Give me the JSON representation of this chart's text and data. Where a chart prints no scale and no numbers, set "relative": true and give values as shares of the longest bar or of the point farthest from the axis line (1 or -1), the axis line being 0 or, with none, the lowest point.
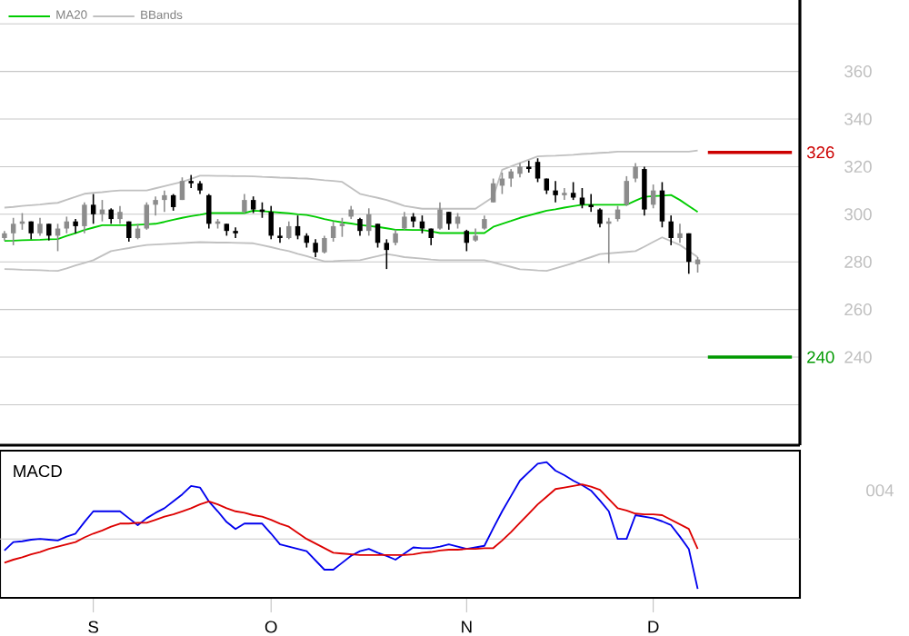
{
  "chart_data": [
    {
      "type": "candlestick",
      "colors": [
        "#8c8c8c",
        "#8c8c8c",
        "#8c8c8c",
        "#000000",
        "#8c8c8c",
        "#000000",
        "#8c8c8c",
        "#8c8c8c",
        "#000000",
        "#8c8c8c",
        "#000000",
        "#8c8c8c",
        "#000000",
        "#8c8c8c",
        "#000000",
        "#8c8c8c",
        "#8c8c8c",
        "#8c8c8c",
        "#8c8c8c",
        "#000000",
        "#8c8c8c",
        "#000000",
        "#000000",
        "#000000",
        "#8c8c8c",
        "#000000",
        "#000000",
        "#8c8c8c",
        "#000000",
        "#000000",
        "#000000",
        "#000000",
        "#8c8c8c",
        "#000000",
        "#000000",
        "#000000",
        "#8c8c8c",
        "#8c8c8c",
        "#8c8c8c",
        "#8c8c8c",
        "#000000",
        "#8c8c8c",
        "#000000",
        "#000000",
        "#8c8c8c",
        "#8c8c8c",
        "#000000",
        "#000000",
        "#000000",
        "#8c8c8c",
        "#000000",
        "#8c8c8c",
        "#000000",
        "#8c8c8c",
        "#8c8c8c",
        "#8c8c8c",
        "#8c8c8c",
        "#8c8c8c",
        "#8c8c8c",
        "#000000",
        "#000000",
        "#000000",
        "#000000",
        "#8c8c8c",
        "#000000",
        "#000000",
        "#000000",
        "#000000",
        "#8c8c8c",
        "#8c8c8c",
        "#8c8c8c",
        "#8c8c8c",
        "#000000",
        "#8c8c8c",
        "#000000",
        "#000000",
        "#8c8c8c",
        "#000000",
        "#8c8c8c",
        null,
        null,
        null,
        null,
        null,
        null,
        null,
        null,
        null,
        null,
        null
      ],
      "categories": [
        null,
        null,
        null,
        null,
        null,
        null,
        null,
        null,
        null,
        null,
        null,
        null,
        null,
        null,
        null,
        null,
        null,
        null,
        null,
        null,
        null,
        null,
        null,
        null,
        null,
        null,
        null,
        null,
        null,
        null,
        null,
        null,
        null,
        null,
        null,
        null,
        null,
        null,
        null,
        null,
        null,
        null,
        null,
        null,
        null,
        null,
        null,
        null,
        null,
        null,
        null,
        null,
        null,
        null,
        null,
        null,
        null,
        null,
        null,
        null,
        null,
        null,
        null,
        null,
        null,
        null,
        null,
        null,
        null,
        null,
        null,
        null,
        null,
        null,
        null,
        null,
        null,
        null,
        null,
        null,
        null,
        null,
        null,
        null,
        null,
        null,
        null,
        null,
        null,
        null
      ],
      "ohlc": [
        [
          290,
          293,
          289,
          292
        ],
        [
          292,
          298.5,
          287,
          296
        ],
        [
          296,
          300.5,
          293.5,
          297
        ],
        [
          297,
          297,
          289.5,
          292
        ],
        [
          292,
          298.5,
          291,
          296
        ],
        [
          296,
          296,
          289,
          291
        ],
        [
          291,
          296,
          284.5,
          294
        ],
        [
          294,
          299,
          292,
          297
        ],
        [
          297,
          298,
          292,
          295
        ],
        [
          295,
          305,
          292,
          304
        ],
        [
          304,
          308.5,
          296,
          300
        ],
        [
          300,
          306,
          297,
          302
        ],
        [
          302,
          302.5,
          296,
          298
        ],
        [
          298,
          303.5,
          296,
          301
        ],
        [
          297,
          297,
          288.5,
          290
        ],
        [
          290,
          296,
          289.5,
          294
        ],
        [
          294,
          305,
          293.5,
          304
        ],
        [
          304,
          307.5,
          299.5,
          306
        ],
        [
          306,
          310,
          301,
          308
        ],
        [
          308,
          308.5,
          301.5,
          303
        ],
        [
          306,
          315.5,
          306,
          314
        ],
        [
          314,
          316.5,
          311,
          313
        ],
        [
          313,
          314,
          308.5,
          310
        ],
        [
          308,
          308.5,
          294,
          296
        ],
        [
          296,
          298,
          294,
          297
        ],
        [
          296,
          296,
          291,
          293
        ],
        [
          293,
          294.5,
          290,
          292
        ],
        [
          301,
          308.5,
          300.5,
          306
        ],
        [
          306,
          307.5,
          300.5,
          302
        ],
        [
          302,
          305,
          298.5,
          301
        ],
        [
          301,
          303.5,
          289.5,
          291
        ],
        [
          291,
          294.5,
          288,
          290
        ],
        [
          290,
          297,
          289.5,
          295
        ],
        [
          295,
          299.5,
          289.5,
          291
        ],
        [
          291,
          292,
          286,
          288
        ],
        [
          288,
          289.5,
          282,
          284
        ],
        [
          284,
          291,
          283.5,
          290
        ],
        [
          290,
          297,
          288.5,
          295
        ],
        [
          295,
          298.5,
          290.5,
          296
        ],
        [
          299,
          303.5,
          298,
          302
        ],
        [
          298,
          298.5,
          291,
          293
        ],
        [
          293,
          302.5,
          291,
          300
        ],
        [
          296,
          296,
          286,
          288
        ],
        [
          288,
          289.5,
          277,
          285
        ],
        [
          288,
          293.5,
          287,
          292
        ],
        [
          294,
          301,
          293.5,
          299
        ],
        [
          299,
          300.5,
          294.5,
          297
        ],
        [
          297,
          299.5,
          292,
          294
        ],
        [
          294,
          294,
          287,
          290
        ],
        [
          294,
          305,
          293.5,
          302
        ],
        [
          301,
          301,
          293.5,
          296
        ],
        [
          296,
          300.5,
          294,
          299
        ],
        [
          293,
          293.5,
          284.5,
          288
        ],
        [
          289,
          294,
          288.5,
          291
        ],
        [
          294,
          299.5,
          293.5,
          298
        ],
        [
          305,
          315,
          305,
          313
        ],
        [
          312,
          317.5,
          308.5,
          315
        ],
        [
          315,
          319,
          311.5,
          318
        ],
        [
          317,
          321.5,
          315.5,
          320
        ],
        [
          320,
          322.5,
          317.5,
          319
        ],
        [
          322,
          323.5,
          313.5,
          315
        ],
        [
          315,
          315,
          308.5,
          310
        ],
        [
          310,
          314,
          305,
          308
        ],
        [
          308,
          311,
          306,
          309
        ],
        [
          309,
          313.5,
          306,
          307
        ],
        [
          307,
          311,
          302.5,
          304
        ],
        [
          304,
          308.5,
          301,
          303
        ],
        [
          302,
          302.5,
          294.5,
          296
        ],
        [
          296,
          298.5,
          279.5,
          297
        ],
        [
          298,
          303.5,
          297,
          302
        ],
        [
          304,
          316,
          303.5,
          314
        ],
        [
          315,
          321.5,
          313.5,
          320
        ],
        [
          319,
          320,
          299.5,
          302
        ],
        [
          304,
          312.5,
          302.5,
          310
        ],
        [
          310,
          313.5,
          294.5,
          297
        ],
        [
          297,
          299.5,
          287,
          290
        ],
        [
          290,
          296,
          288,
          292
        ],
        [
          292,
          292,
          275,
          280
        ],
        [
          279,
          282,
          275.5,
          281
        ],
        null,
        null,
        null,
        null,
        null,
        null,
        null,
        null,
        null,
        null,
        null
      ],
      "series": [
        {
          "name": "MA20",
          "type": "line",
          "color": "#00cc00",
          "values": [
            288.8,
            288.9,
            289.1,
            289.2,
            289.3,
            289.5,
            289.6,
            290.9,
            292.1,
            293.4,
            294.4,
            295.4,
            295.4,
            295.4,
            295.4,
            295.6,
            295.8,
            296,
            296.8,
            297.7,
            298.5,
            299.2,
            299.8,
            300.5,
            300.5,
            300.5,
            300.5,
            300.5,
            301.5,
            301.3,
            301,
            300.7,
            300.4,
            300,
            299.7,
            298.9,
            298,
            297.2,
            296.6,
            296.1,
            295.5,
            295.1,
            294.7,
            294.1,
            293.5,
            293.5,
            293.4,
            293.4,
            292.8,
            292.1,
            292.1,
            292.1,
            292.1,
            292.1,
            292.1,
            294.7,
            296,
            297.2,
            298.5,
            299.5,
            300.5,
            301.5,
            302.1,
            302.8,
            303.4,
            304,
            304,
            304,
            304,
            304,
            304,
            305.7,
            307.3,
            307.6,
            307.8,
            308.1,
            306,
            303.5,
            301,
            null,
            null,
            null,
            null,
            null,
            null,
            null,
            null,
            null,
            null,
            null
          ]
        },
        {
          "name": "BBands",
          "type": "line",
          "color": "#c0c0c0",
          "values": [
            302.8,
            303.1,
            303.5,
            303.8,
            304.1,
            304.5,
            304.8,
            306.1,
            307.3,
            308.6,
            309,
            309.3,
            309.7,
            310,
            310,
            310,
            310,
            310.9,
            311.8,
            312.7,
            313.6,
            314.9,
            316.2,
            316.2,
            316.1,
            316.1,
            316,
            316,
            315.9,
            315.7,
            315.6,
            315.4,
            315.3,
            315.1,
            315,
            314.7,
            314.3,
            314,
            313.6,
            311.1,
            308.6,
            307.7,
            306.9,
            306,
            304.8,
            303.5,
            302.9,
            302.3,
            302.3,
            302.3,
            302.3,
            302.3,
            302.3,
            302.3,
            304.8,
            307.3,
            318.7,
            320.1,
            321.5,
            322.9,
            324.3,
            324.5,
            324.6,
            324.8,
            325,
            325.3,
            325.5,
            325.8,
            326,
            326.3,
            326.3,
            326.3,
            326.3,
            326.3,
            326.3,
            326.3,
            326.3,
            326.3,
            326.8,
            null,
            null,
            null,
            null,
            null,
            null,
            null,
            null,
            null,
            null,
            null
          ]
        },
        {
          "type": "line",
          "color": "#c0c0c0",
          "values": [
            277,
            276.9,
            276.7,
            276.6,
            276.5,
            276.3,
            276.2,
            277.3,
            278.5,
            279.6,
            280.7,
            282.6,
            284.5,
            285.2,
            285.8,
            286.5,
            287.1,
            287.3,
            287.5,
            287.7,
            287.9,
            288.1,
            288.3,
            288.2,
            288.1,
            288.1,
            288,
            287.9,
            287.8,
            287,
            286.2,
            285.3,
            284.5,
            283.4,
            282.4,
            281.3,
            280.2,
            280.3,
            280.5,
            280.6,
            280.7,
            281.6,
            282.4,
            283.3,
            282.7,
            282,
            281.7,
            281.4,
            281,
            280.7,
            280.7,
            280.7,
            280.7,
            280.7,
            280.7,
            279.8,
            278.8,
            277.9,
            276.9,
            276.7,
            276.4,
            276.2,
            277.3,
            278.4,
            279.5,
            280.8,
            282,
            283.3,
            283.6,
            283.9,
            284.2,
            284.5,
            286.4,
            288.4,
            290.3,
            288.7,
            287.1,
            284.6,
            282,
            null,
            null,
            null,
            null,
            null,
            null,
            null,
            null,
            null,
            null,
            null
          ]
        }
      ],
      "ylim": [
        203,
        390
      ],
      "yticks": [
        {
          "value": 220,
          "label": null
        },
        240,
        260,
        280,
        300,
        320,
        340,
        360,
        {
          "value": 380,
          "label": null
        }
      ],
      "grid": "y",
      "legend": "top left",
      "tick_labels": "y",
      "ref_lines": [
        {
          "axis": "y",
          "value": 326,
          "label": "326",
          "color": "#cc0000"
        },
        {
          "axis": "y",
          "value": 240,
          "label": "240",
          "color": "#009900"
        }
      ]
    },
    {
      "type": "line",
      "title": "MACD",
      "relative": true,
      "categories": [
        null,
        null,
        null,
        null,
        null,
        null,
        null,
        null,
        null,
        null,
        "S",
        null,
        null,
        null,
        null,
        null,
        null,
        null,
        null,
        null,
        null,
        null,
        null,
        null,
        null,
        null,
        null,
        null,
        null,
        null,
        "O",
        null,
        null,
        null,
        null,
        null,
        null,
        null,
        null,
        null,
        null,
        null,
        null,
        null,
        null,
        null,
        null,
        null,
        null,
        null,
        null,
        null,
        "N",
        null,
        null,
        null,
        null,
        null,
        null,
        null,
        null,
        null,
        null,
        null,
        null,
        null,
        null,
        null,
        null,
        null,
        null,
        null,
        null,
        "D",
        null,
        null,
        null,
        null,
        null,
        null,
        null,
        null,
        null,
        null,
        null,
        null,
        null,
        null,
        null,
        null
      ],
      "series": [
        {
          "color": "#0000ee",
          "values": [
            -0.15,
            -0.04,
            -0.03,
            -0.01,
            0,
            -0.01,
            -0.02,
            0.03,
            0.07,
            0.22,
            0.36,
            0.36,
            0.36,
            0.36,
            0.27,
            0.18,
            0.27,
            0.34,
            0.4,
            0.49,
            0.58,
            0.69,
            0.67,
            0.49,
            0.36,
            0.22,
            0.13,
            0.2,
            0.2,
            0.2,
            0.07,
            -0.07,
            -0.1,
            -0.13,
            -0.16,
            -0.28,
            -0.4,
            -0.4,
            -0.31,
            -0.22,
            -0.16,
            -0.13,
            -0.18,
            -0.22,
            -0.27,
            -0.19,
            -0.11,
            -0.12,
            -0.12,
            -0.1,
            -0.07,
            -0.1,
            -0.13,
            -0.11,
            -0.09,
            0.14,
            0.36,
            0.56,
            0.76,
            0.87,
            0.98,
            1,
            0.89,
            0.83,
            0.76,
            0.7,
            0.63,
            0.5,
            0.36,
            0,
            0,
            0.31,
            0.29,
            0.27,
            0.23,
            0.18,
            0.03,
            -0.13,
            -0.65,
            null,
            null,
            null,
            null,
            null,
            null,
            null,
            null,
            null,
            null,
            null
          ]
        },
        {
          "color": "#dd0000",
          "values": [
            -0.31,
            -0.27,
            -0.24,
            -0.2,
            -0.17,
            -0.13,
            -0.1,
            -0.07,
            -0.04,
            0.02,
            0.07,
            0.11,
            0.16,
            0.2,
            0.2,
            0.21,
            0.21,
            0.25,
            0.29,
            0.32,
            0.36,
            0.4,
            0.45,
            0.49,
            0.45,
            0.4,
            0.36,
            0.34,
            0.31,
            0.29,
            0.25,
            0.2,
            0.16,
            0.08,
            0,
            -0.06,
            -0.12,
            -0.18,
            -0.19,
            -0.2,
            -0.21,
            -0.21,
            -0.21,
            -0.21,
            -0.21,
            -0.21,
            -0.2,
            -0.18,
            -0.17,
            -0.15,
            -0.14,
            -0.14,
            -0.13,
            -0.13,
            -0.12,
            -0.12,
            -0.02,
            0.09,
            0.21,
            0.33,
            0.45,
            0.55,
            0.65,
            0.67,
            0.69,
            0.71,
            0.68,
            0.64,
            0.52,
            0.4,
            0.37,
            0.33,
            0.32,
            0.32,
            0.31,
            0.25,
            0.19,
            0.13,
            -0.13,
            null,
            null,
            null,
            null,
            null,
            null,
            null,
            null,
            null,
            null,
            null
          ]
        }
      ],
      "tick_labels": "x",
      "ref_lines": [
        {
          "axis": "y",
          "value": 0,
          "color": "#c8c8c8"
        }
      ],
      "annotations": [
        "004"
      ]
    }
  ]
}
